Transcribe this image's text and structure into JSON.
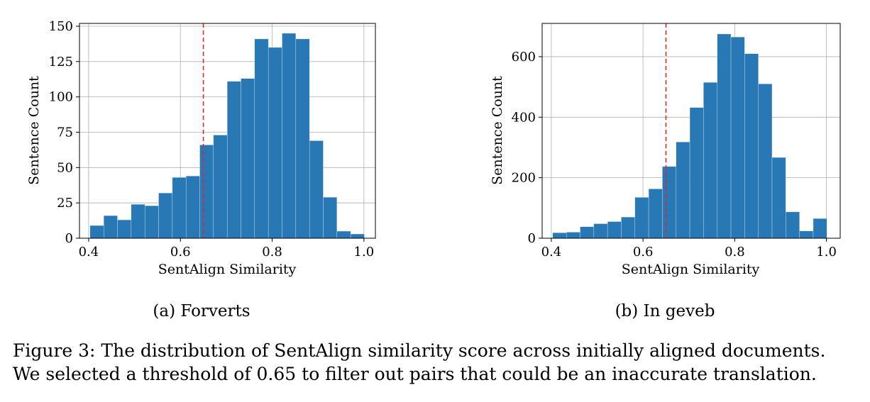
{
  "figure": {
    "caption_line1": "Figure 3: The distribution of SentAlign similarity score across initially aligned documents.",
    "caption_line2": "We selected a threshold of 0.65 to filter out pairs that could be an inaccurate translation."
  },
  "chart_data": [
    {
      "type": "bar",
      "subcaption": "(a) Forverts",
      "xlabel": "SentAlign Similarity",
      "ylabel": "Sentence Count",
      "xlim": [
        0.38,
        1.025
      ],
      "ylim": [
        0,
        152
      ],
      "xticks": [
        0.4,
        0.6,
        0.8,
        1.0
      ],
      "xtick_labels": [
        "0.4",
        "0.6",
        "0.8",
        "1.0"
      ],
      "yticks": [
        0,
        25,
        50,
        75,
        100,
        125,
        150
      ],
      "ytick_labels": [
        "0",
        "25",
        "50",
        "75",
        "100",
        "125",
        "150"
      ],
      "bin_start": 0.403,
      "bin_width": 0.0299,
      "values": [
        9,
        16,
        13,
        24,
        23,
        32,
        43,
        44,
        66,
        73,
        111,
        113,
        141,
        135,
        145,
        141,
        69,
        29,
        5,
        3
      ],
      "threshold": 0.65,
      "bar_color": "#2878b5",
      "threshold_color": "#e8262a",
      "grid": true
    },
    {
      "type": "bar",
      "subcaption": "(b) In geveb",
      "xlabel": "SentAlign Similarity",
      "ylabel": "Sentence Count",
      "xlim": [
        0.38,
        1.03
      ],
      "ylim": [
        0,
        710
      ],
      "xticks": [
        0.4,
        0.6,
        0.8,
        1.0
      ],
      "xtick_labels": [
        "0.4",
        "0.6",
        "0.8",
        "1.0"
      ],
      "yticks": [
        0,
        200,
        400,
        600
      ],
      "ytick_labels": [
        "0",
        "200",
        "400",
        "600"
      ],
      "bin_start": 0.403,
      "bin_width": 0.0299,
      "values": [
        18,
        20,
        38,
        48,
        55,
        70,
        135,
        163,
        237,
        318,
        432,
        515,
        675,
        665,
        610,
        510,
        267,
        87,
        24,
        65
      ],
      "threshold": 0.65,
      "bar_color": "#2878b5",
      "threshold_color": "#e8262a",
      "grid": true
    }
  ]
}
